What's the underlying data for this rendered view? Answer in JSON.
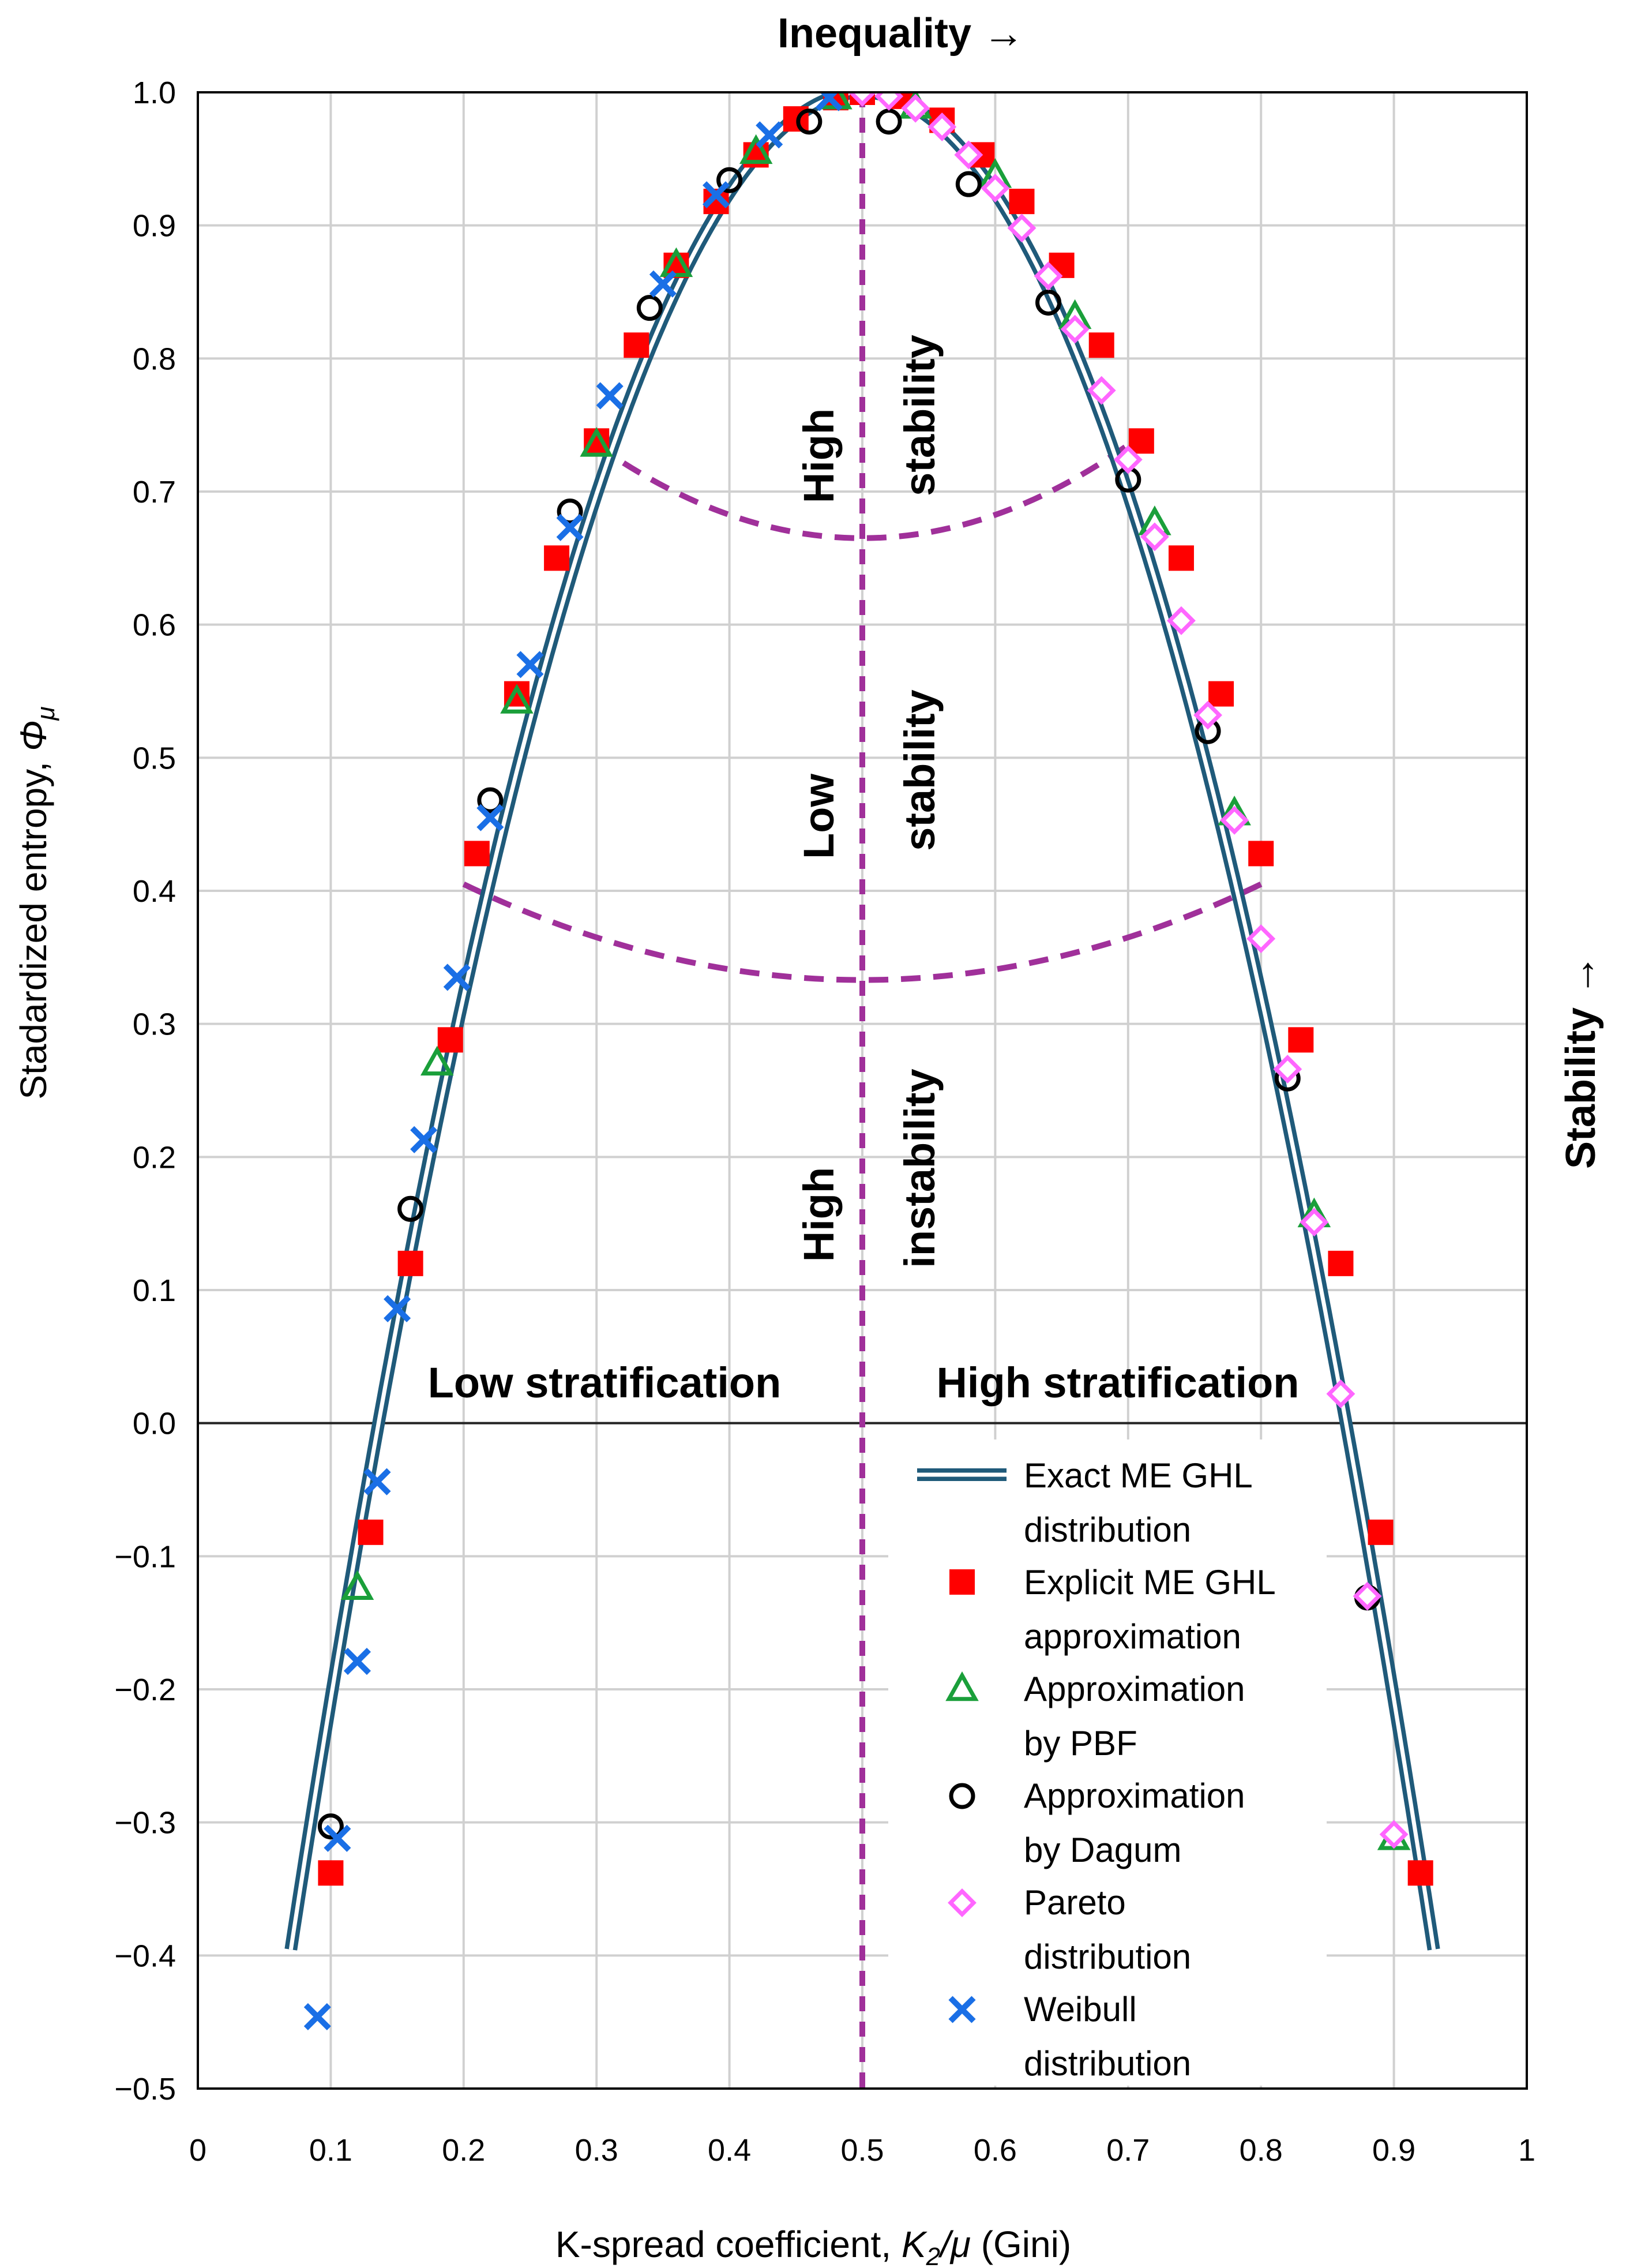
{
  "chart_data": {
    "type": "scatter",
    "title": "",
    "top_label": "Inequality →",
    "right_label": "Stability →",
    "xlabel_prefix": "K-spread coefficient, ",
    "xlabel_var_main": "K",
    "xlabel_var_sub": "2",
    "xlabel_var_rest": "/μ",
    "xlabel_suffix": " (Gini)",
    "ylabel_prefix": "Stadardized entropy, ",
    "ylabel_var_main": "Φ",
    "ylabel_var_sub": "μ",
    "xlim": [
      0,
      1
    ],
    "ylim": [
      -0.5,
      1.0
    ],
    "x_ticks": [
      0,
      0.1,
      0.2,
      0.3,
      0.4,
      0.5,
      0.6,
      0.7,
      0.8,
      0.9,
      1
    ],
    "x_tick_labels": [
      "0",
      "0.1",
      "0.2",
      "0.3",
      "0.4",
      "0.5",
      "0.6",
      "0.7",
      "0.8",
      "0.9",
      "1"
    ],
    "y_ticks": [
      -0.5,
      -0.4,
      -0.3,
      -0.2,
      -0.1,
      0.0,
      0.1,
      0.2,
      0.3,
      0.4,
      0.5,
      0.6,
      0.7,
      0.8,
      0.9,
      1.0
    ],
    "y_tick_labels": [
      "−0.5",
      "−0.4",
      "−0.3",
      "−0.2",
      "−0.1",
      "0.0",
      "0.1",
      "0.2",
      "0.3",
      "0.4",
      "0.5",
      "0.6",
      "0.7",
      "0.8",
      "0.9",
      "1.0"
    ],
    "grid": true,
    "legend_position": "lower-right",
    "region_labels": {
      "high_stability_1": "High",
      "high_stability_2": "stability",
      "low_stability_1": "Low",
      "low_stability_2": "stability",
      "high_instability_1": "High",
      "high_instability_2": "instability",
      "low_stratification": "Low stratification",
      "high_stratification": "High stratification"
    },
    "colors": {
      "curve": "#1f5a7a",
      "explicit": "#ff0000",
      "pbf": "#1a9f3a",
      "dagum": "#000000",
      "pareto": "#ff66ff",
      "weibull": "#1a6fe6",
      "divider": "#a0309a"
    },
    "dividers": {
      "vertical_x": 0.5,
      "upper_boundary": [
        [
          0.3,
          0.735
        ],
        [
          0.5,
          0.665
        ],
        [
          0.7,
          0.735
        ]
      ],
      "lower_boundary": [
        [
          0.2,
          0.405
        ],
        [
          0.5,
          0.333
        ],
        [
          0.8,
          0.405
        ]
      ]
    },
    "series": [
      {
        "name_1": "Exact ME GHL",
        "name_2": "distribution",
        "kind": "curve"
      },
      {
        "name_1": "Explicit ME GHL",
        "name_2": "approximation",
        "kind": "square",
        "points": [
          [
            0.1,
            -0.338
          ],
          [
            0.13,
            -0.082
          ],
          [
            0.16,
            0.12
          ],
          [
            0.19,
            0.288
          ],
          [
            0.21,
            0.428
          ],
          [
            0.24,
            0.548
          ],
          [
            0.27,
            0.65
          ],
          [
            0.3,
            0.738
          ],
          [
            0.33,
            0.81
          ],
          [
            0.36,
            0.87
          ],
          [
            0.39,
            0.918
          ],
          [
            0.42,
            0.953
          ],
          [
            0.45,
            0.98
          ],
          [
            0.48,
            0.996
          ],
          [
            0.5,
            1.0
          ],
          [
            0.53,
            0.997
          ],
          [
            0.56,
            0.979
          ],
          [
            0.59,
            0.953
          ],
          [
            0.62,
            0.918
          ],
          [
            0.65,
            0.87
          ],
          [
            0.68,
            0.81
          ],
          [
            0.71,
            0.738
          ],
          [
            0.74,
            0.65
          ],
          [
            0.77,
            0.548
          ],
          [
            0.8,
            0.428
          ],
          [
            0.83,
            0.288
          ],
          [
            0.86,
            0.12
          ],
          [
            0.89,
            -0.082
          ],
          [
            0.92,
            -0.338
          ]
        ]
      },
      {
        "name_1": "Approximation",
        "name_2": "by PBF",
        "kind": "triangle",
        "points": [
          [
            0.12,
            -0.124
          ],
          [
            0.18,
            0.27
          ],
          [
            0.24,
            0.542
          ],
          [
            0.3,
            0.735
          ],
          [
            0.36,
            0.87
          ],
          [
            0.42,
            0.955
          ],
          [
            0.48,
            0.996
          ],
          [
            0.54,
            0.989
          ],
          [
            0.6,
            0.937
          ],
          [
            0.66,
            0.831
          ],
          [
            0.72,
            0.676
          ],
          [
            0.78,
            0.458
          ],
          [
            0.84,
            0.156
          ],
          [
            0.9,
            -0.312
          ]
        ]
      },
      {
        "name_1": "Approximation",
        "name_2": "by Dagum",
        "kind": "circle",
        "points": [
          [
            0.1,
            -0.303
          ],
          [
            0.16,
            0.161
          ],
          [
            0.22,
            0.468
          ],
          [
            0.28,
            0.685
          ],
          [
            0.34,
            0.838
          ],
          [
            0.4,
            0.934
          ],
          [
            0.46,
            0.978
          ],
          [
            0.52,
            0.978
          ],
          [
            0.58,
            0.931
          ],
          [
            0.64,
            0.842
          ],
          [
            0.7,
            0.709
          ],
          [
            0.76,
            0.52
          ],
          [
            0.82,
            0.259
          ],
          [
            0.88,
            -0.131
          ]
        ]
      },
      {
        "name_1": "Pareto",
        "name_2": "distribution",
        "kind": "diamond",
        "points": [
          [
            0.5,
            1.0
          ],
          [
            0.52,
            0.997
          ],
          [
            0.54,
            0.988
          ],
          [
            0.56,
            0.974
          ],
          [
            0.58,
            0.953
          ],
          [
            0.6,
            0.928
          ],
          [
            0.62,
            0.898
          ],
          [
            0.64,
            0.862
          ],
          [
            0.66,
            0.822
          ],
          [
            0.68,
            0.776
          ],
          [
            0.7,
            0.724
          ],
          [
            0.72,
            0.666
          ],
          [
            0.74,
            0.603
          ],
          [
            0.76,
            0.532
          ],
          [
            0.78,
            0.453
          ],
          [
            0.8,
            0.364
          ],
          [
            0.82,
            0.266
          ],
          [
            0.84,
            0.151
          ],
          [
            0.86,
            0.022
          ],
          [
            0.88,
            -0.13
          ],
          [
            0.9,
            -0.309
          ]
        ]
      },
      {
        "name_1": "Weibull",
        "name_2": "distribution",
        "kind": "cross",
        "points": [
          [
            0.09,
            -0.446
          ],
          [
            0.105,
            -0.312
          ],
          [
            0.12,
            -0.179
          ],
          [
            0.135,
            -0.044
          ],
          [
            0.15,
            0.086
          ],
          [
            0.17,
            0.213
          ],
          [
            0.195,
            0.335
          ],
          [
            0.22,
            0.455
          ],
          [
            0.25,
            0.57
          ],
          [
            0.28,
            0.673
          ],
          [
            0.31,
            0.772
          ],
          [
            0.35,
            0.856
          ],
          [
            0.39,
            0.923
          ],
          [
            0.43,
            0.968
          ],
          [
            0.475,
            0.996
          ]
        ]
      }
    ]
  }
}
